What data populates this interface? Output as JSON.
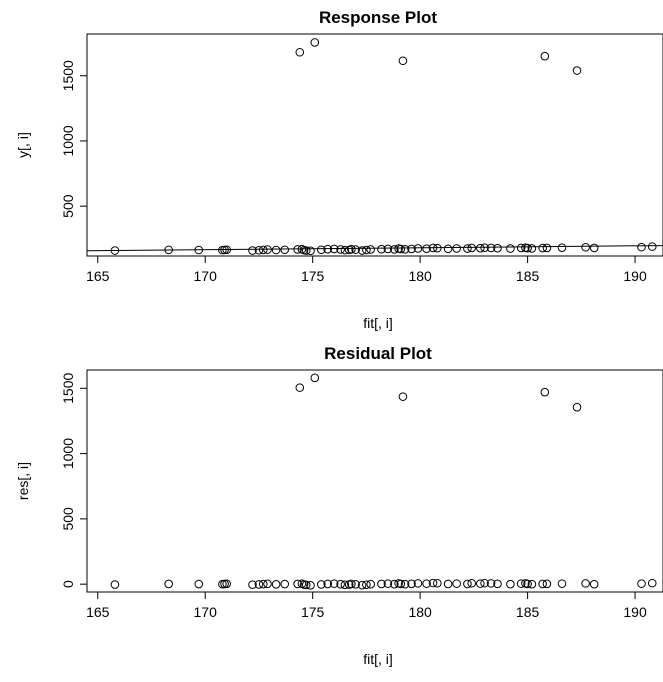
{
  "chart_data": [
    {
      "type": "scatter",
      "title": "Response Plot",
      "xlabel": "fit[, i]",
      "ylabel": "y[, i]",
      "xlim": [
        164.5,
        191.3
      ],
      "ylim": [
        118,
        1820
      ],
      "xticks": [
        165,
        170,
        175,
        180,
        185,
        190
      ],
      "yticks": [
        500,
        1000,
        1500
      ],
      "grid": false,
      "reference_line": {
        "x": [
          164.5,
          191.3
        ],
        "y": [
          158,
          198
        ]
      },
      "x": [
        165.8,
        168.3,
        169.7,
        170.8,
        170.9,
        171.0,
        172.2,
        172.5,
        172.7,
        172.9,
        173.3,
        173.7,
        174.3,
        174.5,
        174.6,
        174.7,
        174.9,
        175.4,
        175.7,
        176.0,
        176.3,
        176.5,
        176.7,
        176.8,
        177.0,
        177.3,
        177.5,
        177.7,
        178.2,
        178.5,
        178.8,
        179.0,
        179.1,
        179.3,
        179.6,
        179.9,
        180.3,
        180.6,
        180.8,
        181.3,
        181.7,
        182.2,
        182.4,
        182.8,
        183.0,
        183.3,
        183.6,
        184.2,
        184.7,
        184.9,
        185.0,
        185.2,
        185.7,
        185.9,
        186.6,
        187.7,
        188.1,
        190.3,
        190.8,
        174.4,
        175.1,
        179.2,
        185.8,
        187.3
      ],
      "y": [
        160,
        165,
        164,
        163,
        165,
        166,
        160,
        162,
        165,
        167,
        164,
        166,
        168,
        170,
        163,
        160,
        158,
        166,
        170,
        172,
        168,
        163,
        165,
        170,
        167,
        160,
        164,
        168,
        170,
        172,
        168,
        175,
        171,
        169,
        172,
        176,
        174,
        180,
        178,
        173,
        176,
        175,
        180,
        178,
        182,
        180,
        178,
        175,
        180,
        182,
        178,
        176,
        179,
        180,
        182,
        185,
        180,
        186,
        190,
        1680,
        1755,
        1615,
        1650,
        1540
      ]
    },
    {
      "type": "scatter",
      "title": "Residual Plot",
      "xlabel": "fit[, i]",
      "ylabel": "res[, i]",
      "xlim": [
        164.5,
        191.3
      ],
      "ylim": [
        -60,
        1640
      ],
      "xticks": [
        165,
        170,
        175,
        180,
        185,
        190
      ],
      "yticks": [
        0,
        500,
        1000,
        1500
      ],
      "grid": false,
      "x": [
        165.8,
        168.3,
        169.7,
        170.8,
        170.9,
        171.0,
        172.2,
        172.5,
        172.7,
        172.9,
        173.3,
        173.7,
        174.3,
        174.5,
        174.6,
        174.7,
        174.9,
        175.4,
        175.7,
        176.0,
        176.3,
        176.5,
        176.7,
        176.8,
        177.0,
        177.3,
        177.5,
        177.7,
        178.2,
        178.5,
        178.8,
        179.0,
        179.1,
        179.3,
        179.6,
        179.9,
        180.3,
        180.6,
        180.8,
        181.3,
        181.7,
        182.2,
        182.4,
        182.8,
        183.0,
        183.3,
        183.6,
        184.2,
        184.7,
        184.9,
        185.0,
        185.2,
        185.7,
        185.9,
        186.6,
        187.7,
        188.1,
        190.3,
        190.8,
        174.4,
        175.1,
        179.2,
        185.8,
        187.3
      ],
      "y": [
        -3,
        2,
        1,
        0,
        2,
        3,
        -4,
        -2,
        1,
        3,
        -1,
        1,
        2,
        4,
        -3,
        -6,
        -9,
        -2,
        2,
        4,
        0,
        -5,
        -3,
        2,
        -1,
        -8,
        -4,
        0,
        2,
        4,
        0,
        6,
        2,
        0,
        3,
        6,
        4,
        9,
        7,
        2,
        4,
        2,
        7,
        4,
        8,
        6,
        3,
        0,
        4,
        6,
        2,
        0,
        2,
        3,
        4,
        6,
        0,
        4,
        8,
        1505,
        1580,
        1436,
        1470,
        1355
      ]
    }
  ]
}
